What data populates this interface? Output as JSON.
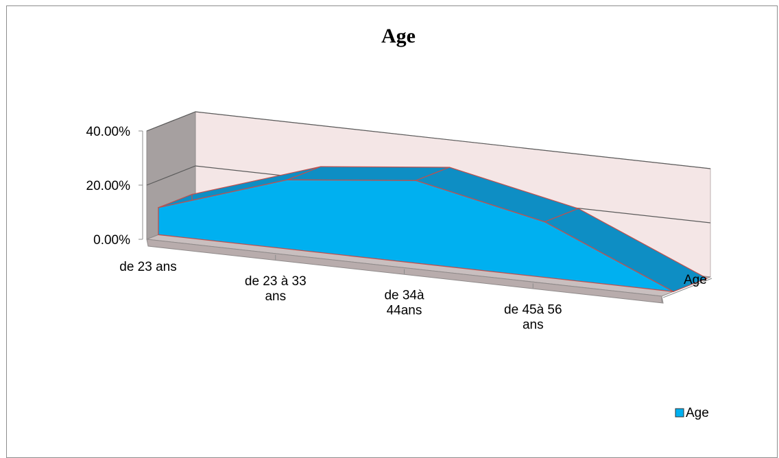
{
  "chart_data": {
    "type": "area",
    "style": "3d",
    "title": "Age",
    "categories": [
      "de 23 ans",
      "de 23 à 33 ans",
      "de 34à 44ans",
      "de 45à 56 ans",
      ""
    ],
    "tick_label_lines": [
      [
        "de 23 ans"
      ],
      [
        "de 23 à 33",
        "ans"
      ],
      [
        "de 34à",
        "44ans"
      ],
      [
        "de 45à 56",
        "ans"
      ],
      []
    ],
    "series": [
      {
        "name": "Age",
        "values": [
          0.1,
          0.255,
          0.305,
          0.205,
          0.0
        ]
      }
    ],
    "y_ticks": [
      "0.00%",
      "20.00%",
      "40.00%"
    ],
    "ylim": [
      0,
      0.4
    ],
    "depth_axis_label": "Age",
    "legend": {
      "position": "bottom-right",
      "label": "Age"
    },
    "grid": true,
    "colors": {
      "area_front": "#00b0f0",
      "area_top": "#0e8ec4",
      "area_edge": "#c0504d",
      "back_wall": "#f4e6e6",
      "side_wall": "#a6a0a0",
      "floor": "#c9bfbf",
      "gridline": "#5a5a5a"
    }
  }
}
